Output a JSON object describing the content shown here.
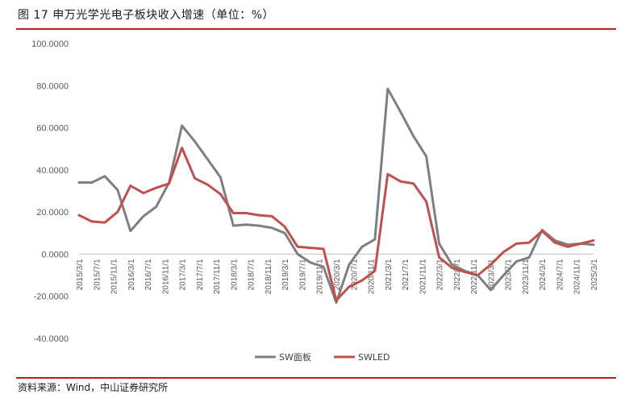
{
  "header": {
    "title": "图 17 申万光学光电子板块收入增速（单位：%）"
  },
  "footer": {
    "source": "资料来源：Wind，中山证券研究所"
  },
  "colors": {
    "accent_rule": "#b22222",
    "series_sw_panel": "#7f7f7f",
    "series_swled": "#c0504d"
  },
  "chart_data": {
    "type": "line",
    "title": "",
    "xlabel": "",
    "ylabel": "",
    "ylim": [
      -40,
      100
    ],
    "yticks": [
      "100.0000",
      "80.0000",
      "60.0000",
      "40.0000",
      "20.0000",
      "0.0000",
      "-20.0000",
      "-40.0000"
    ],
    "ytick_values": [
      100,
      80,
      60,
      40,
      20,
      0,
      -20,
      -40
    ],
    "grid": false,
    "legend": "bottom",
    "categories": [
      "2015/3/1",
      "2015/7/1",
      "2015/11/1",
      "2016/3/1",
      "2016/7/1",
      "2016/11/1",
      "2017/3/1",
      "2017/7/1",
      "2017/11/1",
      "2018/3/1",
      "2018/7/1",
      "2018/11/1",
      "2019/3/1",
      "2019/7/1",
      "2019/11/1",
      "2020/3/1",
      "2020/7/1",
      "2020/11/1",
      "2021/3/1",
      "2021/7/1",
      "2021/11/1",
      "2022/3/1",
      "2022/7/1",
      "2022/11/1",
      "2023/3/1",
      "2023/7/1",
      "2023/11/1",
      "2024/3/1",
      "2024/7/1",
      "2024/11/1",
      "2025/3/1"
    ],
    "x": [
      "2015/3/1",
      "2015/6/1",
      "2015/9/1",
      "2015/12/1",
      "2016/3/1",
      "2016/6/1",
      "2016/9/1",
      "2016/12/1",
      "2017/3/1",
      "2017/6/1",
      "2017/9/1",
      "2017/12/1",
      "2018/3/1",
      "2018/6/1",
      "2018/9/1",
      "2018/12/1",
      "2019/3/1",
      "2019/6/1",
      "2019/9/1",
      "2019/12/1",
      "2020/3/1",
      "2020/6/1",
      "2020/9/1",
      "2020/12/1",
      "2021/3/1",
      "2021/6/1",
      "2021/9/1",
      "2021/12/1",
      "2022/3/1",
      "2022/6/1",
      "2022/9/1",
      "2022/12/1",
      "2023/3/1",
      "2023/6/1",
      "2023/9/1",
      "2023/12/1",
      "2024/3/1",
      "2024/6/1",
      "2024/9/1",
      "2024/12/1",
      "2025/3/1"
    ],
    "series": [
      {
        "name": "SW面板",
        "color": "#7f7f7f",
        "values": [
          34.0,
          34.0,
          37.0,
          30.5,
          11.0,
          18.0,
          22.5,
          34.0,
          61.0,
          53.5,
          45.0,
          36.5,
          13.5,
          14.0,
          13.5,
          12.5,
          10.0,
          0.0,
          -4.0,
          -6.0,
          -23.0,
          -5.0,
          3.5,
          7.0,
          78.5,
          67.5,
          56.0,
          46.5,
          5.0,
          -5.0,
          -8.0,
          -10.0,
          -17.0,
          -10.0,
          -3.5,
          -1.5,
          11.5,
          6.5,
          4.5,
          5.0,
          4.5
        ]
      },
      {
        "name": "SWLED",
        "color": "#c0504d",
        "values": [
          18.5,
          15.5,
          15.0,
          20.0,
          32.5,
          29.0,
          31.5,
          33.5,
          50.5,
          36.0,
          33.0,
          28.5,
          19.5,
          19.5,
          18.5,
          18.0,
          13.0,
          3.5,
          3.0,
          2.5,
          -22.0,
          -15.5,
          -12.5,
          -8.0,
          38.0,
          34.5,
          33.5,
          25.0,
          -1.5,
          -6.5,
          -8.5,
          -10.0,
          -5.0,
          1.0,
          5.0,
          5.5,
          11.0,
          5.5,
          3.5,
          5.0,
          6.5
        ]
      }
    ]
  }
}
